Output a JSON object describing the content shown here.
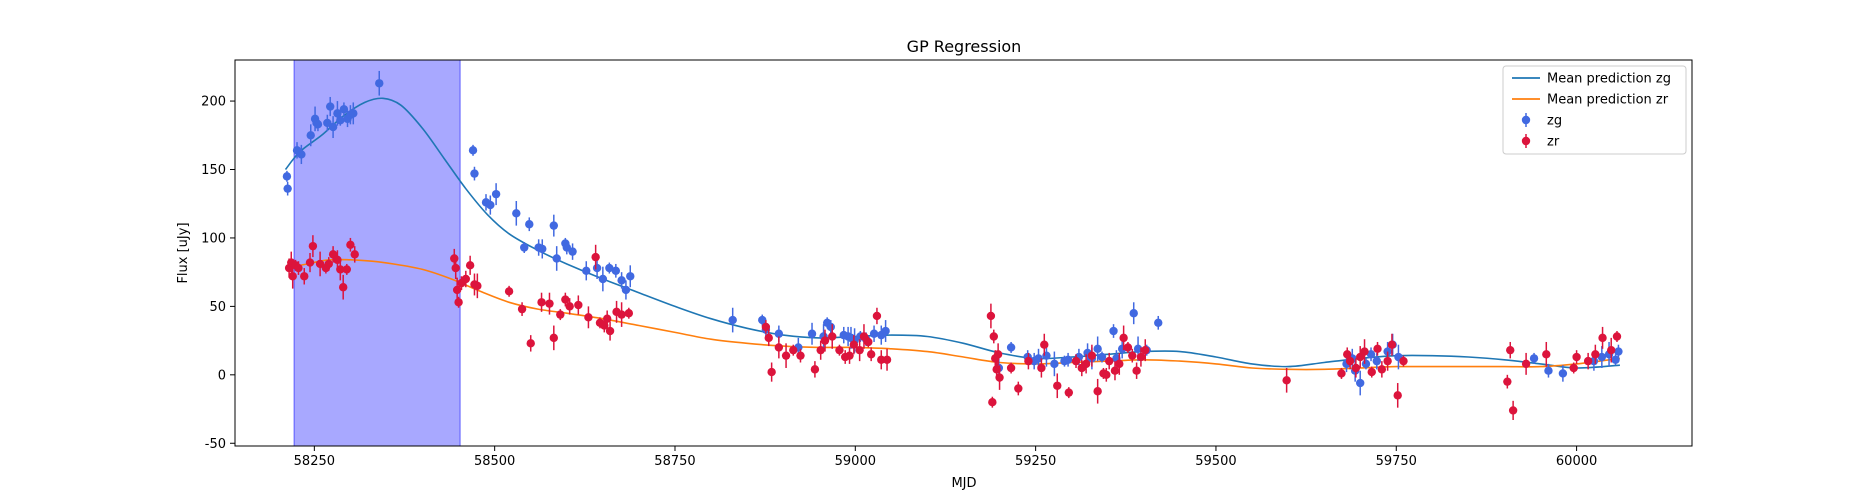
{
  "chart_data": {
    "type": "scatter",
    "title": "GP Regression",
    "xlabel": "MJD",
    "ylabel": "Flux [uJy]",
    "xlim": [
      58140,
      60160
    ],
    "ylim": [
      -52,
      230
    ],
    "xticks": [
      58250,
      58500,
      58750,
      59000,
      59250,
      59500,
      59750,
      60000
    ],
    "yticks": [
      -50,
      0,
      50,
      100,
      150,
      200
    ],
    "grid": false,
    "legend_position": "top-right",
    "shaded_region": {
      "x": [
        58222,
        58452
      ],
      "color": "#a8a8ff"
    },
    "colors": {
      "zg_points": "#4169e1",
      "zr_points": "#dc143c",
      "zg_line": "#1f77b4",
      "zr_line": "#ff7f0e"
    },
    "lines": [
      {
        "name": "Mean prediction zg",
        "color": "#1f77b4",
        "x": [
          58210,
          58230,
          58260,
          58290,
          58320,
          58345,
          58370,
          58400,
          58430,
          58460,
          58490,
          58520,
          58560,
          58600,
          58650,
          58700,
          58750,
          58800,
          58850,
          58900,
          58950,
          59000,
          59050,
          59100,
          59150,
          59200,
          59250,
          59300,
          59350,
          59400,
          59450,
          59500,
          59550,
          59600,
          59650,
          59700,
          59750,
          59800,
          59850,
          59900,
          59950,
          60000,
          60060
        ],
        "y": [
          150,
          163,
          175,
          189,
          199,
          202,
          197,
          180,
          158,
          136,
          117,
          103,
          91,
          81,
          70,
          60,
          50,
          41,
          34,
          29,
          27,
          28,
          29,
          28,
          23,
          16,
          12,
          13,
          15,
          17,
          17,
          13,
          8,
          6,
          9,
          12,
          14,
          14,
          13,
          11,
          8,
          5,
          7
        ]
      },
      {
        "name": "Mean prediction zr",
        "color": "#ff7f0e",
        "x": [
          58210,
          58240,
          58270,
          58300,
          58330,
          58360,
          58400,
          58440,
          58480,
          58520,
          58560,
          58600,
          58650,
          58700,
          58750,
          58800,
          58850,
          58900,
          58950,
          59000,
          59050,
          59100,
          59150,
          59200,
          59250,
          59300,
          59350,
          59400,
          59450,
          59500,
          59550,
          59600,
          59650,
          59700,
          59750,
          59800,
          59850,
          59900,
          59950,
          60000,
          60060
        ],
        "y": [
          78,
          81,
          84,
          84,
          83,
          81,
          77,
          70,
          61,
          53,
          48,
          45,
          41,
          36,
          31,
          26,
          23,
          21,
          20,
          20,
          19,
          17,
          13,
          9,
          8,
          9,
          10,
          11,
          10,
          8,
          5,
          4,
          4,
          5,
          6,
          6,
          6,
          6,
          6,
          8,
          12
        ]
      }
    ],
    "series": [
      {
        "name": "zg",
        "color": "#4169e1",
        "x": [
          58212,
          58213,
          58226,
          58232,
          58245,
          58251,
          58253,
          58255,
          58268,
          58272,
          58276,
          58282,
          58286,
          58291,
          58296,
          58300,
          58304,
          58340,
          58470,
          58472,
          58488,
          58494,
          58502,
          58530,
          58541,
          58548,
          58561,
          58566,
          58582,
          58586,
          58598,
          58600,
          58608,
          58627,
          58642,
          58650,
          58659,
          58668,
          58676,
          58682,
          58688,
          58830,
          58871,
          58876,
          58894,
          58921,
          58940,
          58956,
          58961,
          58966,
          58984,
          58990,
          58994,
          58999,
          59007,
          59015,
          59026,
          59036,
          59042,
          59199,
          59216,
          59239,
          59248,
          59254,
          59265,
          59276,
          59290,
          59295,
          59310,
          59322,
          59328,
          59336,
          59342,
          59358,
          59362,
          59370,
          59386,
          59392,
          59404,
          59420,
          59681,
          59689,
          59693,
          59700,
          59708,
          59715,
          59723,
          59738,
          59745,
          59753,
          59941,
          59961,
          59981,
          60024,
          60035,
          60045,
          60054,
          60058
        ],
        "y": [
          145,
          136,
          164,
          161,
          175,
          187,
          184,
          183,
          184,
          196,
          181,
          191,
          186,
          194,
          187,
          190,
          191,
          213,
          164,
          147,
          126,
          124,
          132,
          118,
          93,
          110,
          93,
          92,
          109,
          85,
          96,
          93,
          90,
          76,
          78,
          70,
          78,
          76,
          69,
          62,
          72,
          40,
          40,
          33,
          30,
          20,
          30,
          28,
          38,
          35,
          29,
          28,
          27,
          25,
          28,
          26,
          30,
          29,
          32,
          5,
          20,
          13,
          10,
          12,
          14,
          8,
          10,
          11,
          13,
          16,
          12,
          19,
          13,
          32,
          12,
          19,
          45,
          19,
          18,
          38,
          8,
          12,
          3,
          -6,
          8,
          15,
          10,
          17,
          22,
          13,
          12,
          3,
          1,
          10,
          13,
          15,
          11,
          17
        ]
      },
      {
        "name": "zr",
        "color": "#dc143c",
        "x": [
          58215,
          58218,
          58220,
          58224,
          58228,
          58236,
          58244,
          58248,
          58258,
          58266,
          58270,
          58276,
          58282,
          58286,
          58290,
          58295,
          58300,
          58306,
          58444,
          58446,
          58448,
          58450,
          58454,
          58460,
          58466,
          58472,
          58476,
          58520,
          58538,
          58550,
          58565,
          58576,
          58582,
          58591,
          58598,
          58604,
          58616,
          58630,
          58640,
          58646,
          58652,
          58656,
          58660,
          58669,
          58676,
          58686,
          58876,
          58880,
          58884,
          58894,
          58904,
          58914,
          58924,
          58944,
          58952,
          58958,
          58968,
          58978,
          58986,
          58992,
          58998,
          59006,
          59012,
          59018,
          59022,
          59030,
          59036,
          59044,
          59188,
          59190,
          59192,
          59194,
          59196,
          59198,
          59200,
          59216,
          59226,
          59240,
          59258,
          59262,
          59280,
          59296,
          59306,
          59314,
          59320,
          59328,
          59336,
          59344,
          59348,
          59352,
          59360,
          59366,
          59372,
          59378,
          59384,
          59390,
          59396,
          59402,
          59598,
          59674,
          59682,
          59686,
          59694,
          59700,
          59706,
          59716,
          59724,
          59730,
          59738,
          59744,
          59752,
          59760,
          59904,
          59908,
          59912,
          59930,
          59958,
          59996,
          60000,
          60016,
          60026,
          60036,
          60048,
          60056
        ],
        "y": [
          78,
          82,
          72,
          80,
          78,
          72,
          82,
          94,
          81,
          78,
          81,
          88,
          84,
          77,
          64,
          77,
          95,
          88,
          85,
          78,
          62,
          53,
          67,
          70,
          80,
          66,
          65,
          61,
          48,
          23,
          53,
          52,
          27,
          44,
          55,
          50,
          51,
          42,
          86,
          38,
          36,
          41,
          32,
          46,
          44,
          45,
          35,
          27,
          2,
          20,
          14,
          18,
          14,
          4,
          18,
          25,
          28,
          18,
          13,
          14,
          22,
          18,
          28,
          24,
          15,
          43,
          11,
          11,
          43,
          -20,
          28,
          12,
          4,
          15,
          -2,
          5,
          -10,
          10,
          5,
          22,
          -8,
          -13,
          10,
          5,
          8,
          14,
          -12,
          1,
          0,
          10,
          3,
          8,
          27,
          20,
          14,
          3,
          13,
          18,
          -4,
          1,
          15,
          10,
          5,
          13,
          17,
          2,
          19,
          4,
          10,
          22,
          -15,
          10,
          -5,
          18,
          -26,
          8,
          15,
          5,
          13,
          10,
          15,
          27,
          18,
          28
        ]
      }
    ]
  }
}
